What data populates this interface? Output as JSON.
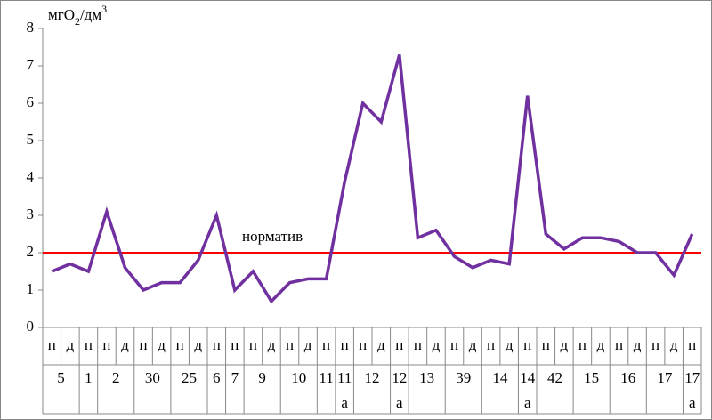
{
  "chart_data": {
    "type": "line",
    "y_label_parts": [
      "мгО",
      "2",
      "/дм",
      "3"
    ],
    "groups": [
      {
        "label": [
          "5"
        ],
        "categories": [
          "п",
          "д"
        ]
      },
      {
        "label": [
          "1"
        ],
        "categories": [
          "п"
        ]
      },
      {
        "label": [
          "2"
        ],
        "categories": [
          "п",
          "д"
        ]
      },
      {
        "label": [
          "30"
        ],
        "categories": [
          "п",
          "д"
        ]
      },
      {
        "label": [
          "25"
        ],
        "categories": [
          "п",
          "д"
        ]
      },
      {
        "label": [
          "6"
        ],
        "categories": [
          "п"
        ]
      },
      {
        "label": [
          "7"
        ],
        "categories": [
          "п"
        ]
      },
      {
        "label": [
          "9"
        ],
        "categories": [
          "п",
          "д"
        ]
      },
      {
        "label": [
          "10"
        ],
        "categories": [
          "п",
          "д"
        ]
      },
      {
        "label": [
          "11"
        ],
        "categories": [
          "п"
        ]
      },
      {
        "label": [
          "11",
          "а"
        ],
        "categories": [
          "п"
        ]
      },
      {
        "label": [
          "12"
        ],
        "categories": [
          "п",
          "д"
        ]
      },
      {
        "label": [
          "12",
          "а"
        ],
        "categories": [
          "п"
        ]
      },
      {
        "label": [
          "13"
        ],
        "categories": [
          "п",
          "д"
        ]
      },
      {
        "label": [
          "39"
        ],
        "categories": [
          "п",
          "д"
        ]
      },
      {
        "label": [
          "14"
        ],
        "categories": [
          "п",
          "д"
        ]
      },
      {
        "label": [
          "14",
          "а"
        ],
        "categories": [
          "п"
        ]
      },
      {
        "label": [
          "42"
        ],
        "categories": [
          "п",
          "д"
        ]
      },
      {
        "label": [
          "15"
        ],
        "categories": [
          "п",
          "д"
        ]
      },
      {
        "label": [
          "16"
        ],
        "categories": [
          "п",
          "д"
        ]
      },
      {
        "label": [
          "17"
        ],
        "categories": [
          "п",
          "д"
        ]
      },
      {
        "label": [
          "17",
          "а"
        ],
        "categories": [
          "п"
        ]
      }
    ],
    "series": [
      {
        "color": "#7030a0",
        "values": [
          1.5,
          1.7,
          1.5,
          3.1,
          1.6,
          1.0,
          1.2,
          1.2,
          1.8,
          3.0,
          1.0,
          1.5,
          0.7,
          1.2,
          1.3,
          1.3,
          3.9,
          6.0,
          5.5,
          7.3,
          2.4,
          2.6,
          1.9,
          1.6,
          1.8,
          1.7,
          6.2,
          2.5,
          2.1,
          2.4,
          2.4,
          2.3,
          2.0,
          2.0,
          1.4,
          2.5
        ]
      }
    ],
    "reference": {
      "label": "норматив",
      "value": 2,
      "color": "#ff0000"
    },
    "ylim": [
      0,
      8
    ],
    "yticks": [
      0,
      1,
      2,
      3,
      4,
      5,
      6,
      7,
      8
    ]
  }
}
